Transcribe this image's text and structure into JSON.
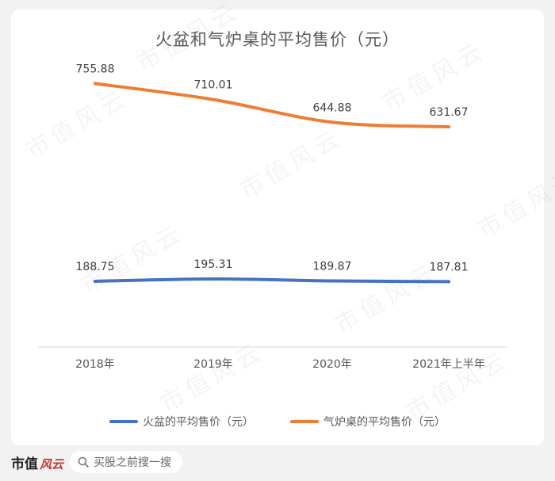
{
  "chart_data": {
    "type": "line",
    "title": "火盆和气炉桌的平均售价（元）",
    "categories": [
      "2018年",
      "2019年",
      "2020年",
      "2021年上半年"
    ],
    "series": [
      {
        "name": "火盆的平均售价（元）",
        "values": [
          188.75,
          195.31,
          189.87,
          187.81
        ],
        "color": "#4472c4"
      },
      {
        "name": "气炉桌的平均售价（元）",
        "values": [
          755.88,
          710.01,
          644.88,
          631.67
        ],
        "color": "#ed7d31"
      }
    ],
    "data_labels": [
      [
        "188.75",
        "195.31",
        "189.87",
        "187.81"
      ],
      [
        "755.88",
        "710.01",
        "644.88",
        "631.67"
      ]
    ],
    "ylim": [
      0,
      900
    ],
    "grid": false,
    "legend": "bottom"
  },
  "watermark": "市值风云",
  "footer": {
    "brand": "市值",
    "brand_logo": "风云",
    "search_placeholder": "买股之前搜一搜"
  }
}
